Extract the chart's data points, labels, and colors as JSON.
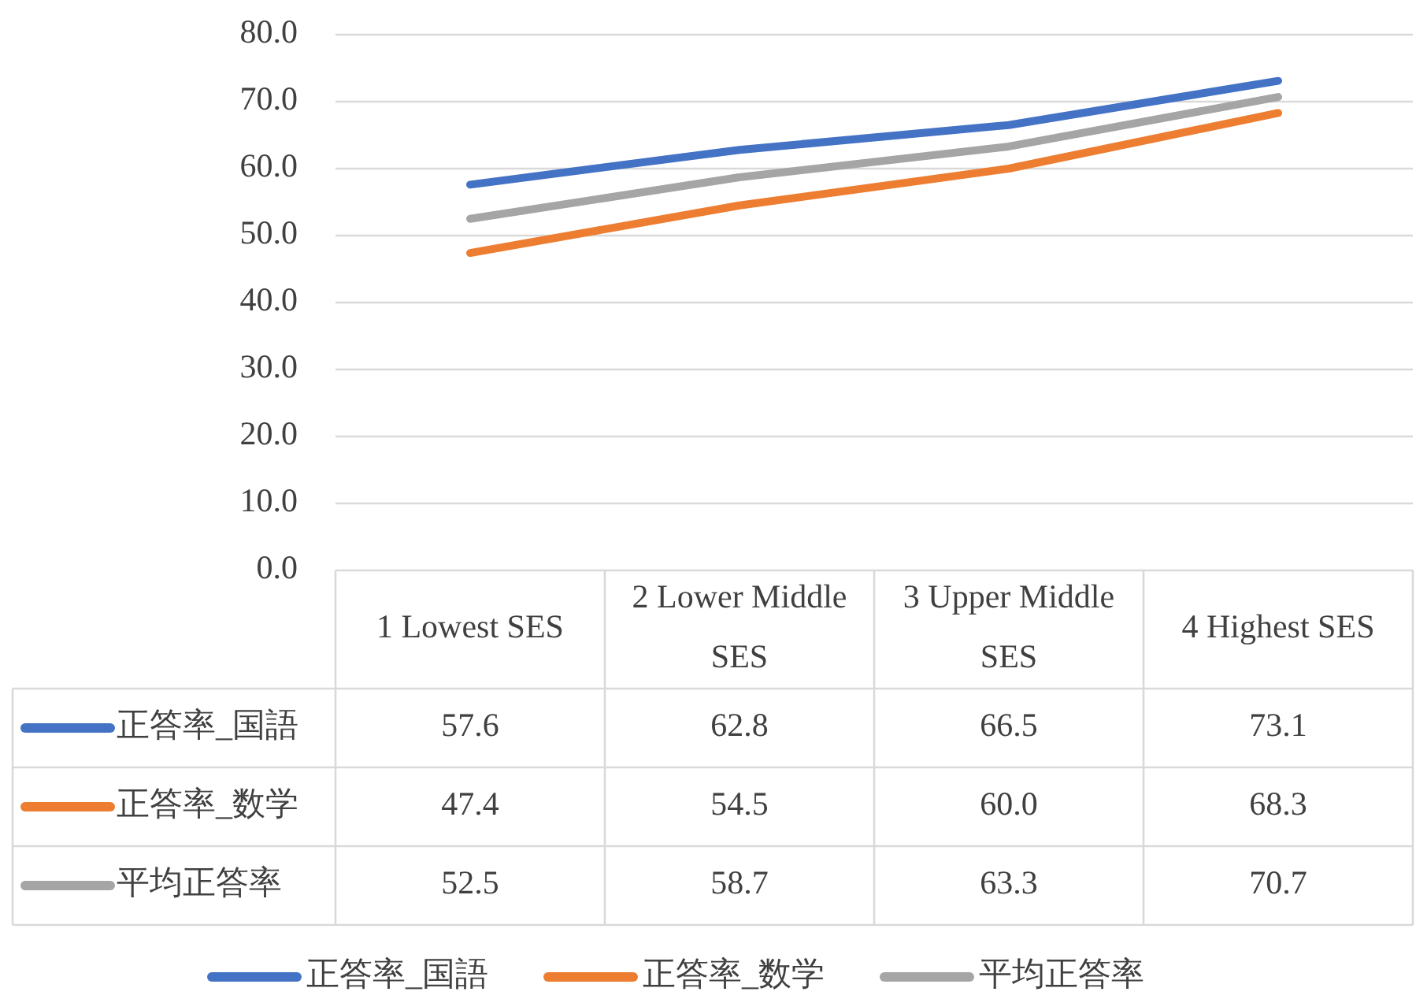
{
  "chart_data": {
    "type": "line",
    "categories": [
      "1 Lowest SES",
      "2 Lower Middle SES",
      "3 Upper Middle SES",
      "4 Highest SES"
    ],
    "series": [
      {
        "name": "正答率_国語",
        "color": "#4472c4",
        "values": [
          57.6,
          62.8,
          66.5,
          73.1
        ],
        "value_labels": [
          "57.6",
          "62.8",
          "66.5",
          "73.1"
        ]
      },
      {
        "name": "正答率_数学",
        "color": "#ed7d31",
        "values": [
          47.4,
          54.5,
          60.0,
          68.3
        ],
        "value_labels": [
          "47.4",
          "54.5",
          "60.0",
          "68.3"
        ]
      },
      {
        "name": "平均正答率",
        "color": "#a5a5a5",
        "values": [
          52.5,
          58.7,
          63.3,
          70.7
        ],
        "value_labels": [
          "52.5",
          "58.7",
          "63.3",
          "70.7"
        ]
      }
    ],
    "ylim": [
      0,
      80
    ],
    "yticks": [
      {
        "value": 0,
        "label": "0.0"
      },
      {
        "value": 10,
        "label": "10.0"
      },
      {
        "value": 20,
        "label": "20.0"
      },
      {
        "value": 30,
        "label": "30.0"
      },
      {
        "value": 40,
        "label": "40.0"
      },
      {
        "value": 50,
        "label": "50.0"
      },
      {
        "value": 60,
        "label": "60.0"
      },
      {
        "value": 70,
        "label": "70.0"
      },
      {
        "value": 80,
        "label": "80.0"
      }
    ],
    "grid": "y",
    "legend": "bottom",
    "marker": "none",
    "line_style": "solid"
  }
}
